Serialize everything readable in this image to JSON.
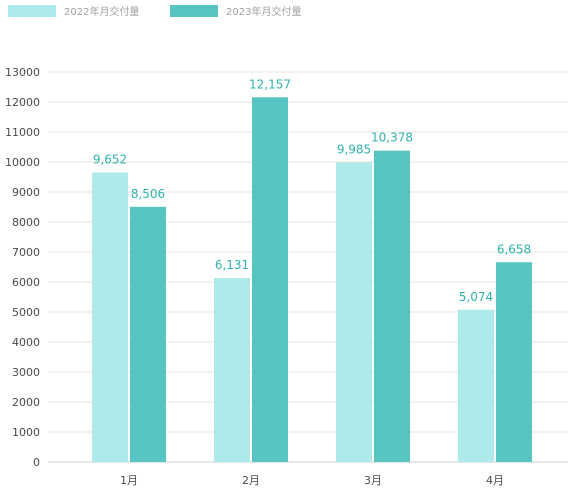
{
  "chart_data": {
    "type": "bar",
    "categories": [
      "1月",
      "2月",
      "3月",
      "4月"
    ],
    "series": [
      {
        "name": "2022年月交付量",
        "color": "#aeeaea",
        "values": [
          9652,
          6131,
          9985,
          5074
        ],
        "labels": [
          "9,652",
          "6,131",
          "9,985",
          "5,074"
        ]
      },
      {
        "name": "2023年月交付量",
        "color": "#56c4c0",
        "values": [
          8506,
          12157,
          10378,
          6658
        ],
        "labels": [
          "8,506",
          "12,157",
          "10,378",
          "6,658"
        ]
      }
    ],
    "yticks": [
      "0",
      "1000",
      "2000",
      "3000",
      "4000",
      "5000",
      "6000",
      "7000",
      "8000",
      "9000",
      "10000",
      "11000",
      "12000",
      "13000"
    ],
    "ylim": [
      0,
      13000
    ],
    "grid": true,
    "legend_position": "top-left",
    "label_color": "#2fb3ae",
    "grid_color": "#e4e4e4",
    "tick_color": "#4a4a4a",
    "legend_text_color": "#a0a0a0"
  }
}
